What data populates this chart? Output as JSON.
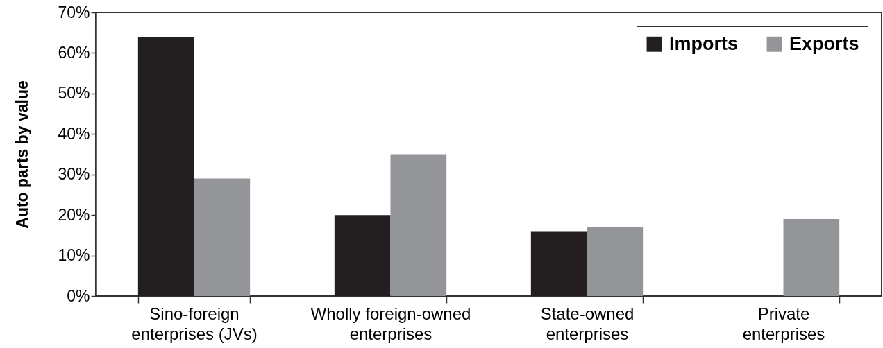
{
  "chart_data": {
    "type": "bar",
    "ylabel": "Auto parts by value",
    "categories": [
      "Sino-foreign\nenterprises (JVs)",
      "Wholly foreign-owned\nenterprises",
      "State-owned\nenterprises",
      "Private\nenterprises"
    ],
    "series": [
      {
        "name": "Imports",
        "color": "#231f20",
        "values": [
          64,
          20,
          16,
          null
        ]
      },
      {
        "name": "Exports",
        "color": "#939598",
        "values": [
          29,
          35,
          17,
          19
        ]
      }
    ],
    "ylim": [
      0,
      70
    ],
    "yticks": [
      {
        "value": 0,
        "label": "0%"
      },
      {
        "value": 10,
        "label": "10%"
      },
      {
        "value": 20,
        "label": "20%"
      },
      {
        "value": 30,
        "label": "30%"
      },
      {
        "value": 40,
        "label": "40%"
      },
      {
        "value": 50,
        "label": "50%"
      },
      {
        "value": 60,
        "label": "60%"
      },
      {
        "value": 70,
        "label": "70%"
      }
    ],
    "grid": false,
    "legend": "top right"
  }
}
